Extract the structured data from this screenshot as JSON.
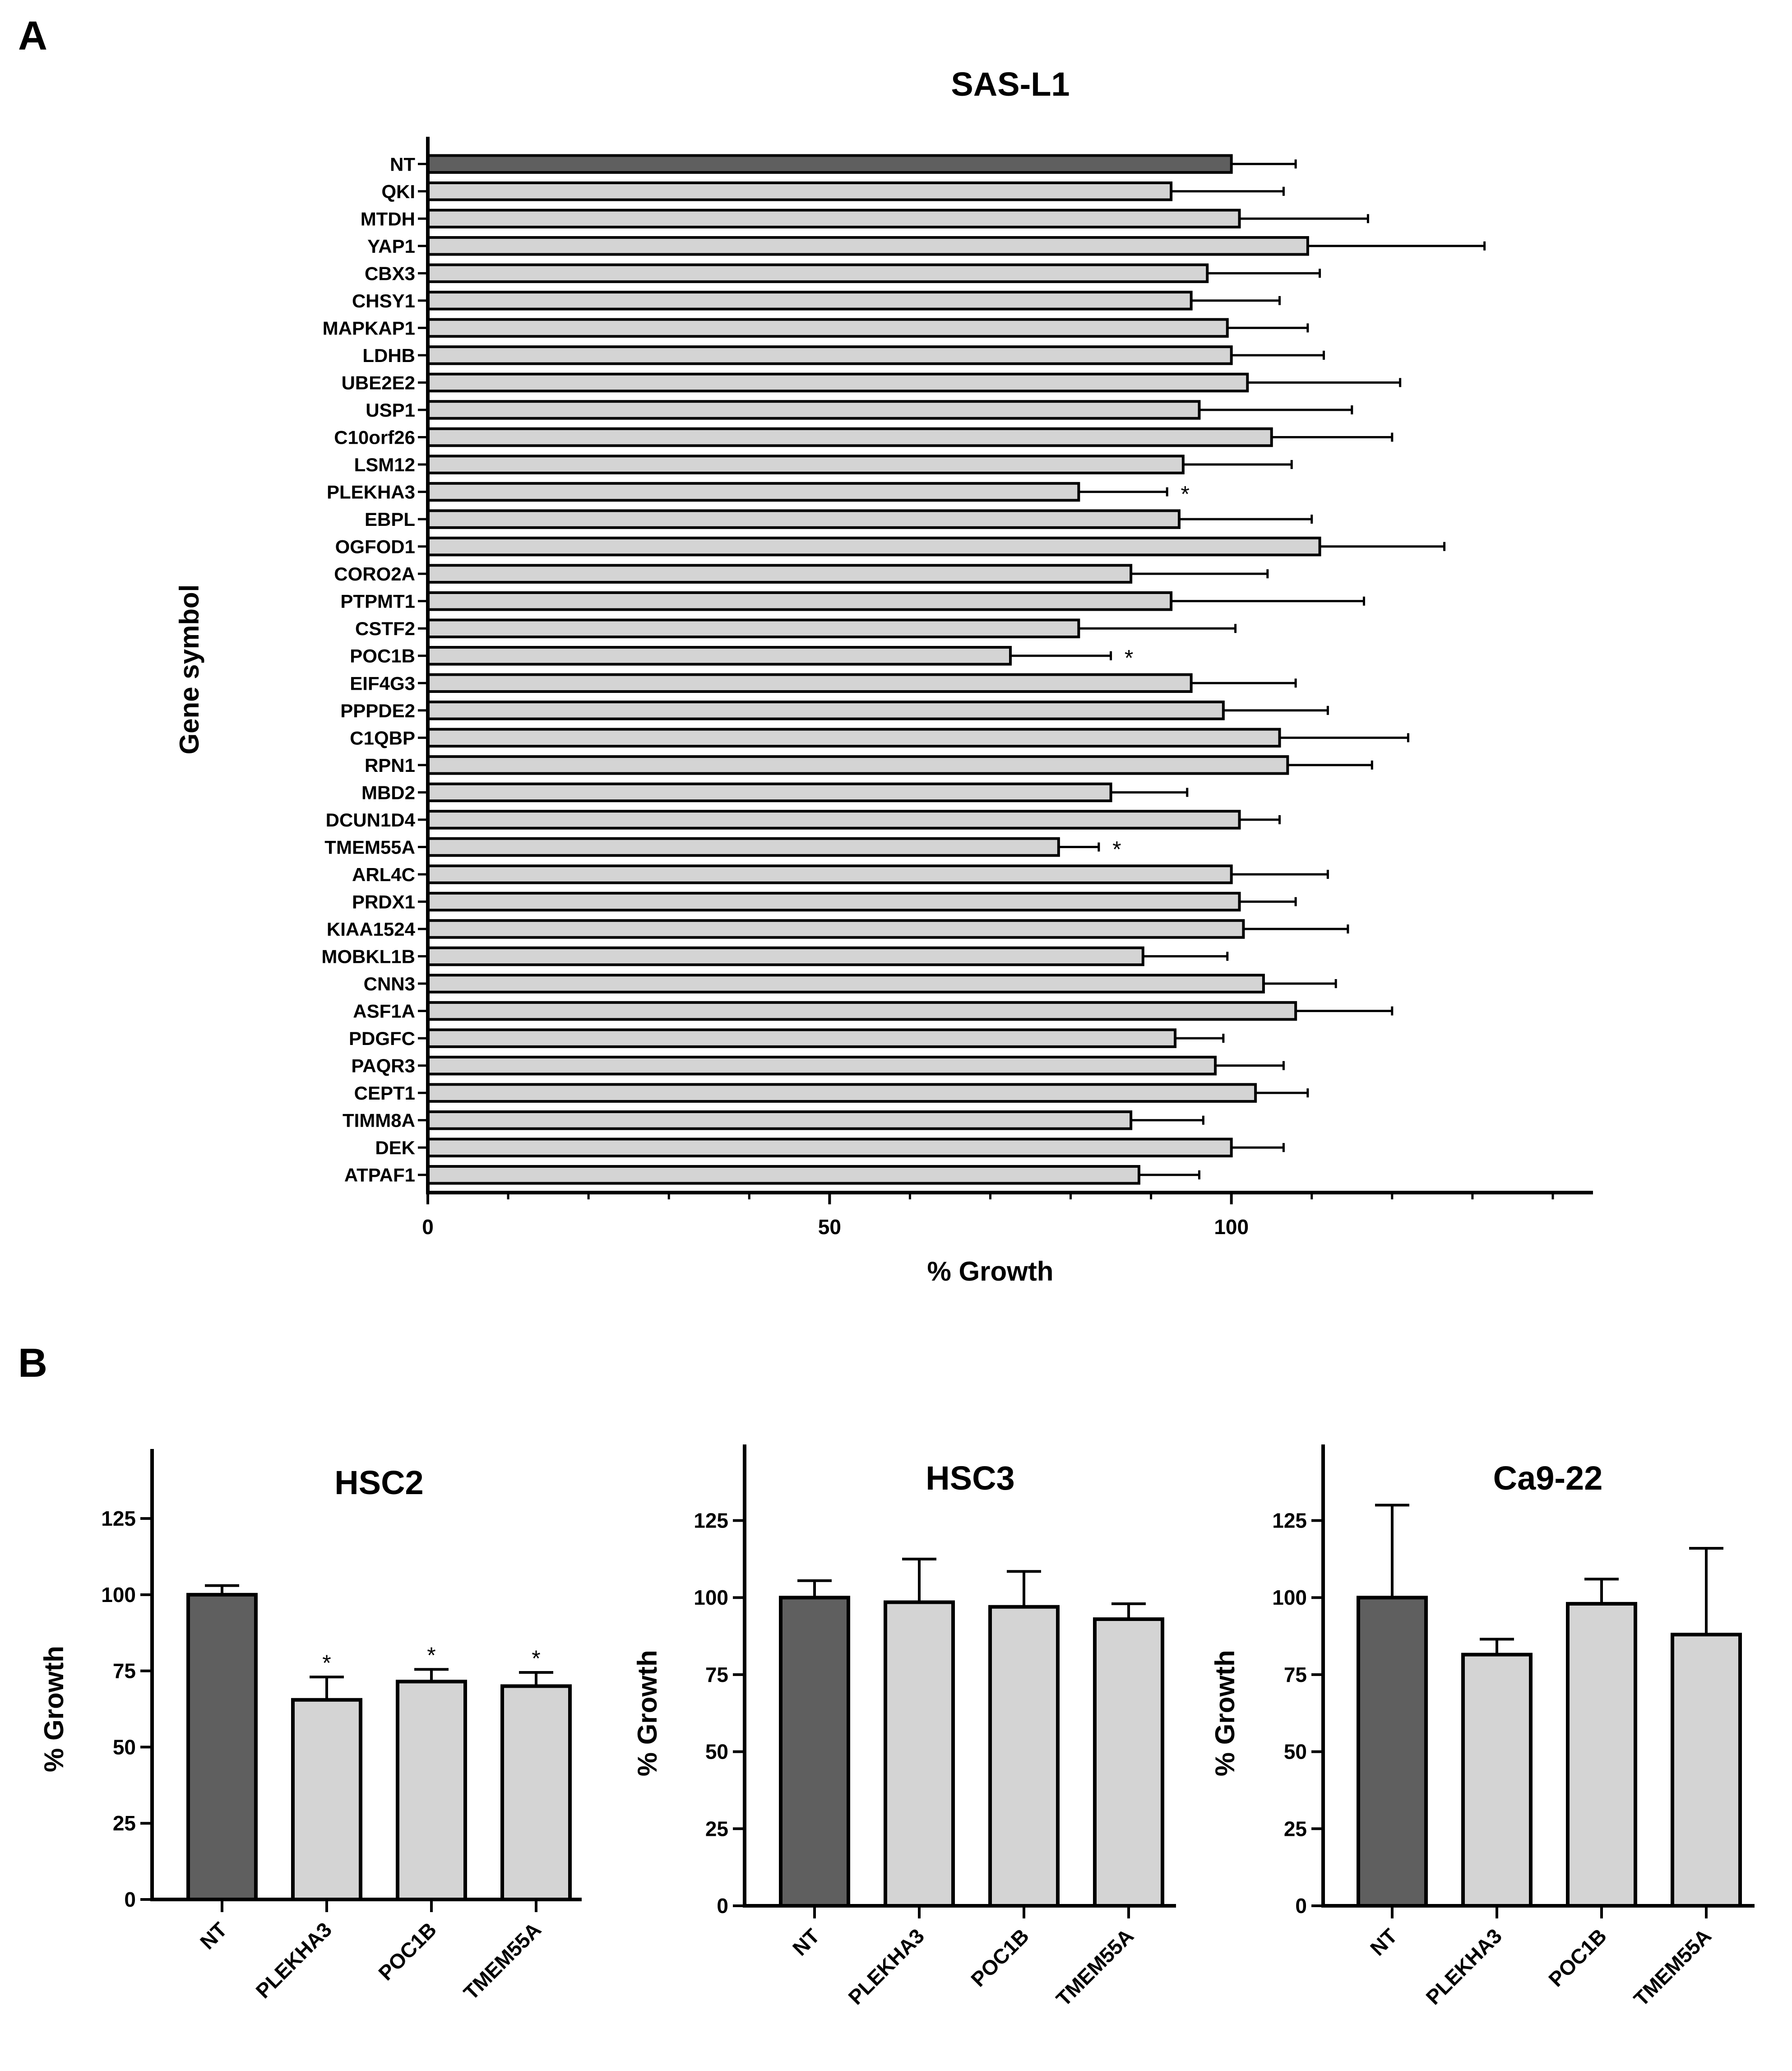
{
  "figure": {
    "panel_a_label": "A",
    "panel_b_label": "B",
    "colors": {
      "nt_bar": "#5f5f5f",
      "gene_bar": "#d4d4d4",
      "stroke": "#000000"
    }
  },
  "chart_data": [
    {
      "id": "sas-l1",
      "type": "bar",
      "orientation": "horizontal",
      "title": "SAS-L1",
      "xlabel": "% Growth",
      "ylabel": "Gene symbol",
      "xlim": [
        0,
        145
      ],
      "xticks": [
        0,
        50,
        100
      ],
      "xticks_labels": [
        "0",
        "50",
        "100"
      ],
      "xminor_ticks": [
        10,
        20,
        30,
        40,
        60,
        70,
        80,
        90,
        110,
        120,
        130,
        140
      ],
      "categories": [
        "NT",
        "QKI",
        "MTDH",
        "YAP1",
        "CBX3",
        "CHSY1",
        "MAPKAP1",
        "LDHB",
        "UBE2E2",
        "USP1",
        "C10orf26",
        "LSM12",
        "PLEKHA3",
        "EBPL",
        "OGFOD1",
        "CORO2A",
        "PTPMT1",
        "CSTF2",
        "POC1B",
        "EIF4G3",
        "PPPDE2",
        "C1QBP",
        "RPN1",
        "MBD2",
        "DCUN1D4",
        "TMEM55A",
        "ARL4C",
        "PRDX1",
        "KIAA1524",
        "MOBKL1B",
        "CNN3",
        "ASF1A",
        "PDGFC",
        "PAQR3",
        "CEPT1",
        "TIMM8A",
        "DEK",
        "ATPAF1"
      ],
      "values": [
        100,
        92.5,
        101,
        109.5,
        97,
        95,
        99.5,
        100,
        102,
        96,
        105,
        94,
        81,
        93.5,
        111,
        87.5,
        92.5,
        81,
        72.5,
        95,
        99,
        106,
        107,
        85,
        101,
        78.5,
        100,
        101,
        101.5,
        89,
        104,
        108,
        93,
        98,
        103,
        87.5,
        100,
        88.5
      ],
      "errors": [
        8,
        14,
        16,
        22,
        14,
        11,
        10,
        11.5,
        19,
        19,
        15,
        13.5,
        11,
        16.5,
        15.5,
        17,
        24,
        19.5,
        12.5,
        13,
        13,
        16,
        10.5,
        9.5,
        5,
        5,
        12,
        7,
        13,
        10.5,
        9,
        12,
        6,
        8.5,
        6.5,
        9,
        6.5,
        7.5
      ],
      "significance": [
        "",
        "",
        "",
        "",
        "",
        "",
        "",
        "",
        "",
        "",
        "",
        "",
        "*",
        "",
        "",
        "",
        "",
        "",
        "*",
        "",
        "",
        "",
        "",
        "",
        "",
        "*",
        "",
        "",
        "",
        "",
        "",
        "",
        "",
        "",
        "",
        "",
        "",
        ""
      ],
      "highlight_index": 0
    },
    {
      "id": "hsc2",
      "type": "bar",
      "title": "HSC2",
      "ylabel": "% Growth",
      "ylim": [
        0,
        145
      ],
      "yticks": [
        0,
        25,
        50,
        75,
        100,
        125
      ],
      "yticks_labels": [
        "0",
        "25",
        "50",
        "75",
        "100",
        "125"
      ],
      "categories": [
        "NT",
        "PLEKHA3",
        "POC1B",
        "TMEM55A"
      ],
      "values": [
        100,
        65.5,
        71.5,
        70
      ],
      "errors": [
        3,
        7.5,
        4,
        4.5
      ],
      "significance": [
        "",
        "*",
        "*",
        "*"
      ],
      "highlight_index": 0
    },
    {
      "id": "hsc3",
      "type": "bar",
      "title": "HSC3",
      "ylabel": "% Growth",
      "ylim": [
        0,
        145
      ],
      "yticks": [
        0,
        25,
        50,
        75,
        100,
        125
      ],
      "yticks_labels": [
        "0",
        "25",
        "50",
        "75",
        "100",
        "125"
      ],
      "categories": [
        "NT",
        "PLEKHA3",
        "POC1B",
        "TMEM55A"
      ],
      "values": [
        100,
        98.5,
        97,
        93
      ],
      "errors": [
        5.5,
        14,
        11.5,
        5
      ],
      "significance": [
        "",
        "",
        "",
        ""
      ],
      "highlight_index": 0
    },
    {
      "id": "ca9-22",
      "type": "bar",
      "title": "Ca9-22",
      "ylabel": "% Growth",
      "ylim": [
        0,
        145
      ],
      "yticks": [
        0,
        25,
        50,
        75,
        100,
        125
      ],
      "yticks_labels": [
        "0",
        "25",
        "50",
        "75",
        "100",
        "125"
      ],
      "categories": [
        "NT",
        "PLEKHA3",
        "POC1B",
        "TMEM55A"
      ],
      "values": [
        100,
        81.5,
        98,
        88
      ],
      "errors": [
        30,
        5,
        8,
        28
      ],
      "significance": [
        "",
        "",
        "",
        ""
      ],
      "highlight_index": 0
    }
  ]
}
